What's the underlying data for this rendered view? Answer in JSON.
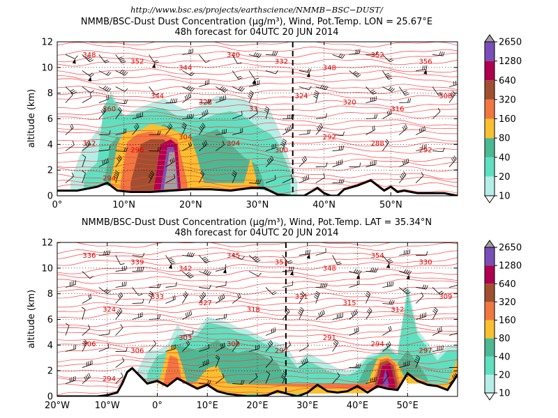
{
  "figure": {
    "url": "http://www.bsc.es/projects/earthscience/NMMB−BSC−DUST/"
  },
  "colorbar": {
    "levels": [
      "10",
      "20",
      "40",
      "80",
      "160",
      "320",
      "640",
      "1280",
      "2650"
    ],
    "colors": [
      "#b4eee6",
      "#5fe0c0",
      "#4cb894",
      "#f8c030",
      "#f07840",
      "#a05030",
      "#b00050",
      "#7a4eb8",
      "#ffffff"
    ],
    "extend_top_color": "#a0a0a0",
    "extend_bottom_color": "#ffffff"
  },
  "panels": [
    {
      "title_line1": "NMMB/BSC-Dust Dust Concentration (µg/m³), Wind, Pot.Temp. LON = 25.67°E",
      "title_line2": "48h forecast for 04UTC 20 JUN 2014",
      "ylabel": "altitude (km)",
      "x_tick_labels": [
        "0°",
        "10°N",
        "20°N",
        "30°N",
        "40°N",
        "50°N"
      ],
      "y_tick_labels": [
        "0",
        "2",
        "4",
        "6",
        "8",
        "10",
        "12"
      ],
      "theta_labels": [
        "348",
        "352",
        "344",
        "340",
        "332",
        "348",
        "352",
        "356",
        "360",
        "344",
        "328",
        "33",
        "324",
        "320",
        "316",
        "308",
        "312",
        "296",
        "304",
        "304",
        "300",
        "292",
        "288",
        "292",
        "294"
      ],
      "colors": {
        "dust_fill": "#5fe0c0",
        "theta_lines": "#ff4040",
        "terrain": "#000000"
      }
    },
    {
      "title_line1": "NMMB/BSC-Dust Dust Concentration (µg/m³), Wind, Pot.Temp. LAT = 35.34°N",
      "title_line2": "48h forecast for 04UTC 20 JUN 2014",
      "ylabel": "altitude (km)",
      "x_tick_labels": [
        "20°W",
        "10°W",
        "0°",
        "10°E",
        "20°E",
        "30°E",
        "40°E",
        "50°E"
      ],
      "y_tick_labels": [
        "0",
        "2",
        "4",
        "6",
        "8",
        "10",
        "12"
      ],
      "theta_labels": [
        "336",
        "339",
        "342",
        "345",
        "351",
        "348",
        "354",
        "330",
        "324",
        "333",
        "327",
        "318",
        "321",
        "315",
        "312",
        "309",
        "306",
        "306",
        "303",
        "300",
        "297",
        "291",
        "294",
        "297",
        "294"
      ],
      "colors": {
        "dust_fill": "#5fe0c0",
        "theta_lines": "#ff4040",
        "terrain": "#000000"
      }
    }
  ],
  "chart_data": [
    {
      "type": "area",
      "xlabel": "",
      "ylabel": "altitude (km)",
      "x_axis": "latitude (°N)",
      "xlim": [
        0,
        60
      ],
      "ylim": [
        0,
        12
      ],
      "grid": true,
      "vertical_marker_x": 35.3,
      "colorbar_levels": [
        10,
        20,
        40,
        80,
        160,
        320,
        640,
        1280,
        2650
      ],
      "terrain_height_km": {
        "x": [
          0,
          3,
          6,
          7.5,
          9,
          11,
          14,
          17,
          20,
          23,
          26,
          29,
          31,
          33,
          35,
          36,
          37,
          38,
          39,
          40,
          41,
          42,
          43,
          45,
          47,
          48,
          49,
          50,
          51,
          52,
          54,
          56,
          58,
          60
        ],
        "y": [
          0.4,
          0.4,
          0.7,
          1.0,
          0.4,
          0.3,
          0.3,
          0.4,
          0.5,
          0.5,
          0.4,
          0.6,
          0.6,
          0.1,
          0.0,
          0.0,
          0.0,
          0.3,
          0.6,
          0.2,
          0.0,
          0.0,
          0.5,
          0.8,
          1.2,
          0.8,
          0.4,
          0.7,
          0.3,
          0.4,
          0.2,
          0.2,
          0.2,
          0.0
        ]
      },
      "dust_layers": [
        {
          "level": 10,
          "x": [
            2,
            4,
            5,
            7,
            8,
            10,
            12,
            14,
            16,
            18,
            20,
            22,
            24,
            26,
            28,
            30,
            32,
            33.5,
            35,
            36
          ],
          "top_km": [
            1.2,
            4.0,
            4.4,
            5.8,
            8.2,
            6.2,
            6.8,
            7.2,
            7.6,
            7.0,
            6.6,
            7.2,
            7.8,
            7.6,
            7.6,
            6.8,
            6.6,
            4.8,
            2.4,
            1.0
          ]
        },
        {
          "level": 20,
          "x": [
            4,
            6,
            7,
            8,
            10,
            12,
            14,
            16,
            18,
            20,
            22,
            24,
            26,
            28,
            30,
            32,
            33,
            34,
            35
          ],
          "top_km": [
            1.6,
            2.6,
            7.0,
            7.8,
            6.2,
            6.4,
            6.8,
            6.8,
            6.2,
            6.2,
            6.0,
            6.4,
            6.6,
            6.2,
            5.4,
            4.8,
            4.2,
            3.0,
            1.8
          ]
        },
        {
          "level": 40,
          "x": [
            7,
            8,
            9,
            10,
            12,
            14,
            16,
            18,
            20,
            22,
            24,
            26,
            28,
            30,
            31
          ],
          "top_km": [
            1.0,
            4.0,
            4.6,
            4.2,
            4.6,
            5.0,
            5.6,
            5.0,
            4.6,
            4.8,
            5.2,
            4.0,
            3.0,
            2.4,
            1.0
          ]
        },
        {
          "level": 80,
          "x": [
            8,
            9,
            10,
            12,
            14,
            16,
            18,
            20,
            21,
            22,
            28,
            29,
            30
          ],
          "top_km": [
            1.0,
            4.0,
            5.0,
            5.0,
            5.6,
            5.4,
            5.0,
            4.6,
            3.0,
            1.0,
            1.0,
            3.0,
            1.0
          ]
        },
        {
          "level": 160,
          "x": [
            9.5,
            10.5,
            12,
            14,
            16,
            18,
            19.5
          ],
          "top_km": [
            1.0,
            4.2,
            4.8,
            5.0,
            4.8,
            4.4,
            1.0
          ]
        },
        {
          "level": 320,
          "x": [
            11,
            12.5,
            14,
            16,
            17.5,
            18.5
          ],
          "top_km": [
            1.0,
            4.0,
            4.4,
            4.4,
            3.4,
            1.0
          ]
        },
        {
          "level": 640,
          "x": [
            14.5,
            15.5,
            17,
            18,
            18.5
          ],
          "top_km": [
            0.6,
            4.0,
            4.4,
            4.0,
            0.6
          ]
        },
        {
          "level": 1280,
          "x": [
            15.5,
            16.5,
            17.5,
            18.2
          ],
          "top_km": [
            0.6,
            3.8,
            3.8,
            0.6
          ]
        },
        {
          "level": 2650,
          "x": [
            16.0,
            16.8,
            17.6,
            18.0
          ],
          "top_km": [
            0.6,
            3.4,
            3.4,
            0.6
          ]
        }
      ]
    },
    {
      "type": "area",
      "xlabel": "",
      "ylabel": "altitude (km)",
      "x_axis": "longitude (°E, negative = °W)",
      "xlim": [
        -20,
        60
      ],
      "ylim": [
        0,
        12
      ],
      "grid": true,
      "vertical_marker_x": 25.7,
      "colorbar_levels": [
        10,
        20,
        40,
        80,
        160,
        320,
        640,
        1280,
        2650
      ],
      "terrain_height_km": {
        "x": [
          -20,
          -16,
          -12,
          -10,
          -8,
          -7,
          -6,
          -5,
          -4,
          -2,
          0,
          2,
          4,
          6,
          8,
          10,
          12,
          14,
          16,
          18,
          20,
          22,
          24,
          26,
          28,
          30,
          32,
          34,
          36,
          38,
          40,
          42,
          44,
          46,
          48,
          50,
          52,
          54,
          56,
          58,
          60
        ],
        "y": [
          0.0,
          0.0,
          0.0,
          0.1,
          0.3,
          1.0,
          1.9,
          2.2,
          1.8,
          1.0,
          1.2,
          0.8,
          1.4,
          1.0,
          0.6,
          0.9,
          0.4,
          0.2,
          0.1,
          0.0,
          0.0,
          0.1,
          0.4,
          0.2,
          0.0,
          0.3,
          0.9,
          0.4,
          0.3,
          0.4,
          0.8,
          0.3,
          0.8,
          0.6,
          0.5,
          1.8,
          1.2,
          0.9,
          0.8,
          0.5,
          1.7
        ]
      },
      "dust_layers": [
        {
          "level": 10,
          "x": [
            -4,
            -2,
            0,
            2,
            4,
            6,
            8,
            10,
            12,
            14,
            16,
            18,
            20,
            22,
            24,
            26,
            28,
            30,
            32,
            34,
            36,
            38,
            40,
            42,
            44,
            46,
            48,
            50,
            52,
            54,
            56,
            58,
            60
          ],
          "top_km": [
            2.0,
            3.6,
            3.6,
            4.0,
            5.6,
            4.8,
            5.2,
            6.2,
            6.0,
            5.8,
            5.4,
            5.2,
            4.8,
            4.4,
            4.2,
            3.8,
            2.6,
            3.4,
            3.0,
            2.6,
            2.2,
            2.0,
            2.4,
            3.2,
            3.4,
            4.0,
            3.4,
            8.8,
            5.2,
            4.2,
            3.2,
            4.0,
            4.0
          ]
        },
        {
          "level": 20,
          "x": [
            -2,
            0,
            2,
            4,
            6,
            8,
            10,
            12,
            14,
            16,
            18,
            20,
            22,
            24,
            26,
            28,
            30,
            34,
            38,
            40,
            42,
            44,
            46,
            48,
            50,
            52,
            54,
            56,
            58,
            60
          ],
          "top_km": [
            1.8,
            3.2,
            3.4,
            4.8,
            4.4,
            4.8,
            5.8,
            5.6,
            5.4,
            5.0,
            4.8,
            4.4,
            4.0,
            3.8,
            3.2,
            2.2,
            2.8,
            2.0,
            1.6,
            2.0,
            3.0,
            3.2,
            3.8,
            3.2,
            8.2,
            4.8,
            3.8,
            2.8,
            3.6,
            3.6
          ]
        },
        {
          "level": 40,
          "x": [
            2,
            4,
            6,
            8,
            10,
            12,
            14,
            16,
            18,
            20,
            22,
            24,
            26,
            40,
            42,
            44,
            46,
            48,
            50,
            52,
            54
          ],
          "top_km": [
            2.0,
            4.0,
            3.8,
            3.6,
            4.0,
            4.4,
            3.8,
            3.4,
            3.6,
            3.4,
            3.0,
            2.6,
            1.0,
            1.0,
            2.6,
            3.0,
            3.2,
            2.6,
            3.6,
            2.6,
            1.4
          ]
        },
        {
          "level": 80,
          "x": [
            0,
            2,
            3,
            4,
            5,
            6,
            8,
            10,
            12,
            14,
            42,
            44,
            46,
            48,
            50,
            58,
            60
          ],
          "top_km": [
            0.6,
            3.6,
            4.0,
            3.6,
            2.4,
            1.0,
            1.2,
            2.2,
            2.4,
            1.0,
            1.0,
            3.0,
            3.2,
            2.6,
            1.0,
            1.0,
            3.0
          ]
        },
        {
          "level": 160,
          "x": [
            1,
            2.5,
            4,
            5,
            43,
            44.5,
            46,
            47.5,
            48.5
          ],
          "top_km": [
            0.6,
            3.2,
            3.0,
            1.0,
            1.0,
            2.8,
            3.0,
            2.6,
            1.0
          ]
        },
        {
          "level": 320,
          "x": [
            43.5,
            44.5,
            46,
            47.2,
            48
          ],
          "top_km": [
            1.0,
            2.6,
            2.8,
            2.4,
            1.0
          ]
        },
        {
          "level": 640,
          "x": [
            44,
            45,
            46.5,
            47.5
          ],
          "top_km": [
            1.0,
            2.4,
            2.6,
            1.0
          ]
        },
        {
          "level": 1280,
          "x": [
            45,
            45.6,
            46.2
          ],
          "top_km": [
            1.0,
            2.2,
            1.0
          ]
        }
      ]
    }
  ]
}
